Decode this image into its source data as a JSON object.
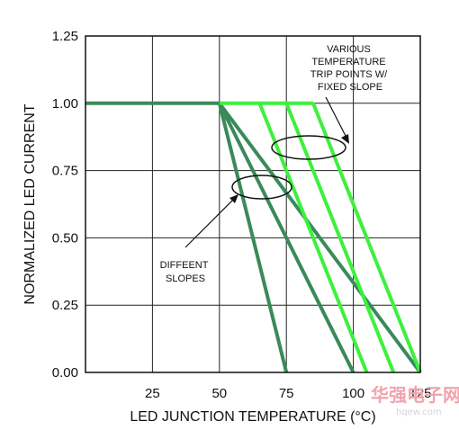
{
  "chart_data": {
    "type": "line",
    "title": "",
    "xlabel": "LED JUNCTION TEMPERATURE (°C)",
    "ylabel": "NORMALIZED LED CURRENT",
    "xlim": [
      0,
      125
    ],
    "ylim": [
      0,
      1.25
    ],
    "x_ticks": [
      "25",
      "50",
      "75",
      "100",
      "125"
    ],
    "y_ticks": [
      "0.00",
      "0.25",
      "0.50",
      "0.75",
      "1.00",
      "1.25"
    ],
    "grid": true,
    "series": [
      {
        "group": "different-slopes",
        "color": "#3a8a5a",
        "x": [
          0,
          50,
          75
        ],
        "y": [
          1.0,
          1.0,
          0.0
        ]
      },
      {
        "group": "different-slopes",
        "color": "#3a8a5a",
        "x": [
          50,
          100
        ],
        "y": [
          1.0,
          0.0
        ]
      },
      {
        "group": "different-slopes",
        "color": "#3a8a5a",
        "x": [
          50,
          125
        ],
        "y": [
          1.0,
          0.0
        ]
      },
      {
        "group": "trip-points",
        "color": "#3ef03e",
        "x": [
          50,
          85
        ],
        "y": [
          1.0,
          1.0
        ]
      },
      {
        "group": "trip-points",
        "color": "#3ef03e",
        "x": [
          65,
          105
        ],
        "y": [
          1.0,
          0.0
        ]
      },
      {
        "group": "trip-points",
        "color": "#3ef03e",
        "x": [
          75,
          115
        ],
        "y": [
          1.0,
          0.0
        ]
      },
      {
        "group": "trip-points",
        "color": "#3ef03e",
        "x": [
          85,
          125
        ],
        "y": [
          1.0,
          0.0
        ]
      }
    ],
    "annotations": [
      {
        "lines": [
          "VARIOUS",
          "TEMPERATURE",
          "TRIP POINTS W/",
          "FIXED SLOPE"
        ]
      },
      {
        "lines": [
          "DIFFEENT",
          "SLOPES"
        ]
      }
    ]
  },
  "watermark": {
    "chinese": "华强电子网",
    "url": "hqew.com"
  }
}
